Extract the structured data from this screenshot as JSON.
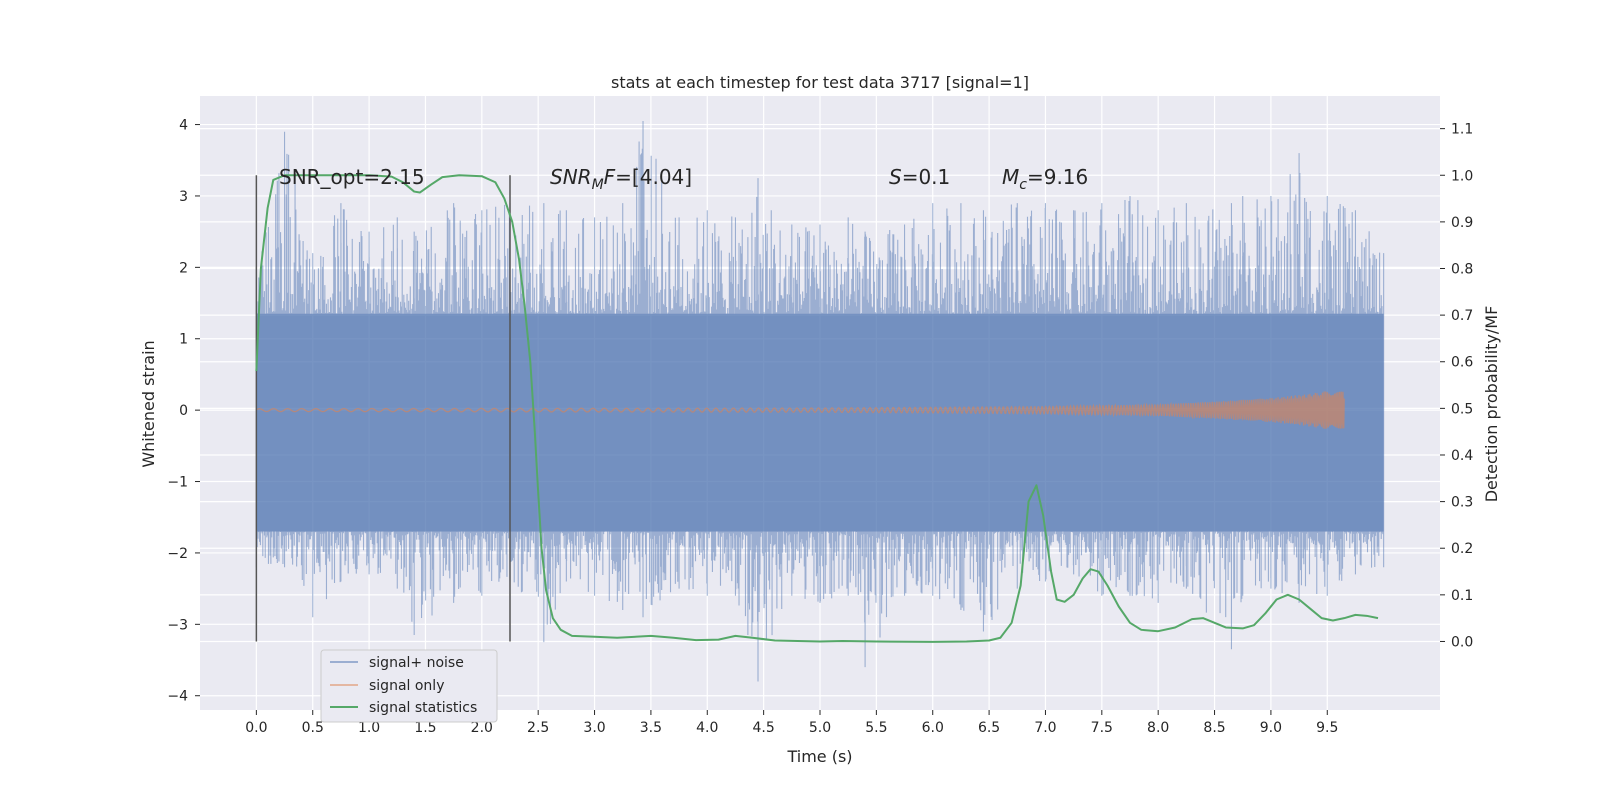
{
  "chart_data": {
    "type": "line",
    "title": "stats at each timestep for test data 3717 [signal=1]",
    "xlabel": "Time (s)",
    "ylabel": "Whitened strain",
    "y2label": "Detection probability/MF",
    "xlim": [
      -0.5,
      10.5
    ],
    "ylim": [
      -4.2,
      4.4
    ],
    "y2lim": [
      -0.147,
      1.17
    ],
    "x_ticks": [
      "0.0",
      "0.5",
      "1.0",
      "1.5",
      "2.0",
      "2.5",
      "3.0",
      "3.5",
      "4.0",
      "4.5",
      "5.0",
      "5.5",
      "6.0",
      "6.5",
      "7.0",
      "7.5",
      "8.0",
      "8.5",
      "9.0",
      "9.5"
    ],
    "y_ticks": [
      "4",
      "3",
      "2",
      "1",
      "0",
      "−1",
      "−2",
      "−3",
      "−4"
    ],
    "y2_ticks": [
      "1.1",
      "1.0",
      "0.9",
      "0.8",
      "0.7",
      "0.6",
      "0.5",
      "0.4",
      "0.3",
      "0.2",
      "0.1",
      "0.0"
    ],
    "grid": true,
    "legend_position": "lower-left",
    "legend": [
      "signal+ noise",
      "signal only",
      "signal statistics"
    ],
    "colors": {
      "noise": "#4c72b0",
      "signal": "#dd8452",
      "stats": "#55a868",
      "background": "#eaeaf2",
      "vlines": "#555555"
    },
    "annotations": {
      "snr_opt": "SNR_opt=2.15",
      "snr_mf": "=[4.04]",
      "s_val": "=0.1",
      "mc_val": "=9.16"
    },
    "vertical_markers": [
      0.0,
      2.25
    ],
    "series": [
      {
        "name": "signal+ noise",
        "style": "noise band",
        "x_range": [
          0.0,
          10.0
        ],
        "dense_band": [
          -1.7,
          1.35
        ],
        "envelope": [
          [
            0.0,
            -2.2,
            2.0
          ],
          [
            0.25,
            -2.2,
            3.9
          ],
          [
            0.5,
            -2.9,
            2.2
          ],
          [
            0.75,
            -2.4,
            2.9
          ],
          [
            1.0,
            -2.3,
            2.5
          ],
          [
            1.25,
            -2.5,
            2.7
          ],
          [
            1.4,
            -3.15,
            2.5
          ],
          [
            1.75,
            -2.7,
            2.9
          ],
          [
            2.0,
            -2.6,
            2.8
          ],
          [
            2.25,
            -2.4,
            2.9
          ],
          [
            2.55,
            -3.25,
            2.9
          ],
          [
            2.75,
            -2.4,
            2.8
          ],
          [
            3.0,
            -2.6,
            2.7
          ],
          [
            3.25,
            -2.8,
            2.9
          ],
          [
            3.43,
            -2.9,
            4.05
          ],
          [
            3.75,
            -2.5,
            2.7
          ],
          [
            4.0,
            -2.6,
            2.8
          ],
          [
            4.25,
            -2.6,
            2.7
          ],
          [
            4.45,
            -3.8,
            3.25
          ],
          [
            4.75,
            -2.6,
            2.6
          ],
          [
            5.0,
            -2.7,
            2.6
          ],
          [
            5.25,
            -2.6,
            2.7
          ],
          [
            5.4,
            -3.6,
            2.5
          ],
          [
            5.75,
            -2.6,
            2.6
          ],
          [
            6.0,
            -2.6,
            2.9
          ],
          [
            6.25,
            -2.8,
            2.9
          ],
          [
            6.45,
            -3.1,
            2.8
          ],
          [
            6.75,
            -2.5,
            2.9
          ],
          [
            7.0,
            -2.4,
            2.9
          ],
          [
            7.25,
            -2.3,
            2.8
          ],
          [
            7.5,
            -2.6,
            2.9
          ],
          [
            7.75,
            -2.6,
            3.0
          ],
          [
            8.0,
            -2.7,
            2.8
          ],
          [
            8.25,
            -2.5,
            2.9
          ],
          [
            8.65,
            -3.35,
            2.9
          ],
          [
            8.75,
            -2.6,
            3.0
          ],
          [
            9.0,
            -2.5,
            3.0
          ],
          [
            9.25,
            -2.7,
            3.6
          ],
          [
            9.5,
            -2.6,
            3.0
          ],
          [
            9.75,
            -2.3,
            2.8
          ],
          [
            10.0,
            -2.2,
            2.2
          ]
        ]
      },
      {
        "name": "signal only",
        "style": "chirp",
        "x_range": [
          0.0,
          9.65
        ],
        "amplitude": [
          [
            0.0,
            0.02
          ],
          [
            5.0,
            0.03
          ],
          [
            7.0,
            0.05
          ],
          [
            8.0,
            0.08
          ],
          [
            8.5,
            0.12
          ],
          [
            9.0,
            0.17
          ],
          [
            9.3,
            0.22
          ],
          [
            9.55,
            0.28
          ],
          [
            9.65,
            0.3
          ]
        ]
      },
      {
        "name": "signal statistics",
        "style": "line",
        "axis": "right",
        "points": [
          [
            0.0,
            0.58
          ],
          [
            0.04,
            0.8
          ],
          [
            0.1,
            0.93
          ],
          [
            0.15,
            0.99
          ],
          [
            0.25,
            1.0
          ],
          [
            0.5,
            1.0
          ],
          [
            1.0,
            1.0
          ],
          [
            1.2,
            0.997
          ],
          [
            1.3,
            0.985
          ],
          [
            1.4,
            0.965
          ],
          [
            1.45,
            0.963
          ],
          [
            1.55,
            0.98
          ],
          [
            1.65,
            0.996
          ],
          [
            1.8,
            1.0
          ],
          [
            2.0,
            0.998
          ],
          [
            2.12,
            0.985
          ],
          [
            2.2,
            0.95
          ],
          [
            2.27,
            0.9
          ],
          [
            2.33,
            0.82
          ],
          [
            2.38,
            0.72
          ],
          [
            2.43,
            0.6
          ],
          [
            2.47,
            0.45
          ],
          [
            2.5,
            0.32
          ],
          [
            2.53,
            0.2
          ],
          [
            2.57,
            0.11
          ],
          [
            2.63,
            0.05
          ],
          [
            2.7,
            0.025
          ],
          [
            2.8,
            0.012
          ],
          [
            3.0,
            0.01
          ],
          [
            3.2,
            0.008
          ],
          [
            3.5,
            0.012
          ],
          [
            3.7,
            0.008
          ],
          [
            3.9,
            0.003
          ],
          [
            4.1,
            0.004
          ],
          [
            4.25,
            0.012
          ],
          [
            4.4,
            0.008
          ],
          [
            4.6,
            0.002
          ],
          [
            5.0,
            0.0
          ],
          [
            5.2,
            0.001
          ],
          [
            5.5,
            0.0
          ],
          [
            6.0,
            -0.001
          ],
          [
            6.3,
            0.0
          ],
          [
            6.5,
            0.002
          ],
          [
            6.6,
            0.008
          ],
          [
            6.7,
            0.04
          ],
          [
            6.78,
            0.12
          ],
          [
            6.85,
            0.3
          ],
          [
            6.92,
            0.335
          ],
          [
            6.98,
            0.27
          ],
          [
            7.05,
            0.15
          ],
          [
            7.1,
            0.09
          ],
          [
            7.17,
            0.085
          ],
          [
            7.25,
            0.1
          ],
          [
            7.33,
            0.135
          ],
          [
            7.4,
            0.155
          ],
          [
            7.47,
            0.15
          ],
          [
            7.55,
            0.12
          ],
          [
            7.65,
            0.075
          ],
          [
            7.75,
            0.04
          ],
          [
            7.85,
            0.025
          ],
          [
            8.0,
            0.022
          ],
          [
            8.15,
            0.03
          ],
          [
            8.3,
            0.048
          ],
          [
            8.4,
            0.05
          ],
          [
            8.5,
            0.04
          ],
          [
            8.6,
            0.03
          ],
          [
            8.75,
            0.028
          ],
          [
            8.85,
            0.035
          ],
          [
            8.95,
            0.06
          ],
          [
            9.05,
            0.09
          ],
          [
            9.15,
            0.1
          ],
          [
            9.25,
            0.09
          ],
          [
            9.35,
            0.07
          ],
          [
            9.45,
            0.05
          ],
          [
            9.55,
            0.045
          ],
          [
            9.65,
            0.05
          ],
          [
            9.75,
            0.057
          ],
          [
            9.85,
            0.055
          ],
          [
            9.95,
            0.05
          ]
        ]
      }
    ]
  }
}
